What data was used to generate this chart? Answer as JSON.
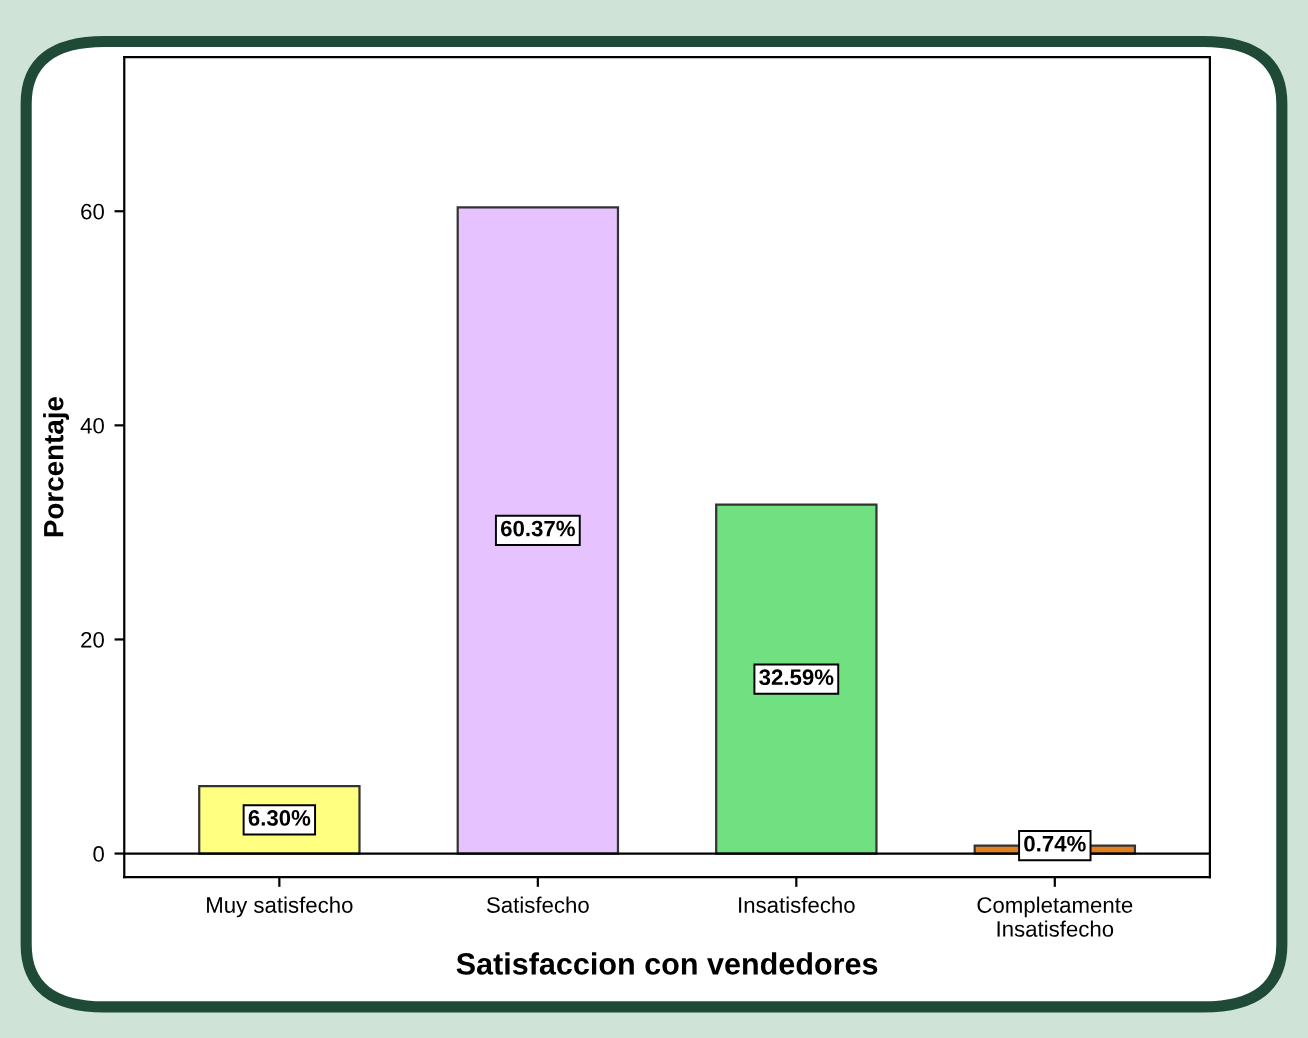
{
  "chart_data": {
    "type": "bar",
    "xlabel": "Satisfaccion con vendedores",
    "ylabel": "Porcentaje",
    "categories": [
      "Muy satisfecho",
      "Satisfecho",
      "Insatisfecho",
      "Completamente\nInsatisfecho"
    ],
    "values": [
      6.3,
      60.37,
      32.59,
      0.74
    ],
    "colors": [
      "#ffff80",
      "#e6c3ff",
      "#70e080",
      "#e08020"
    ],
    "value_labels": [
      "6.30%",
      "60.37%",
      "32.59%",
      "0.74%"
    ],
    "ylim": [
      -2.2,
      74.4
    ],
    "yticks": [
      0,
      20,
      40,
      60
    ],
    "ref_lines": [
      {
        "axis": "y",
        "value": 0,
        "color": "#000000"
      }
    ]
  }
}
